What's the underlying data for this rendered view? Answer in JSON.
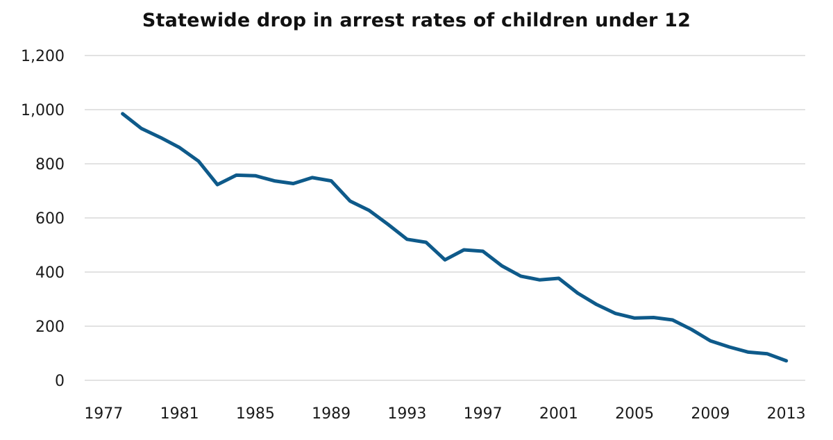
{
  "chart_data": {
    "type": "line",
    "title": "Statewide drop in arrest rates of children under 12",
    "xlabel": "",
    "ylabel": "",
    "x": [
      1978,
      1979,
      1980,
      1981,
      1982,
      1983,
      1984,
      1985,
      1986,
      1987,
      1988,
      1989,
      1990,
      1991,
      1992,
      1993,
      1994,
      1995,
      1996,
      1997,
      1998,
      1999,
      2000,
      2001,
      2002,
      2003,
      2004,
      2005,
      2006,
      2007,
      2008,
      2009,
      2010,
      2011,
      2012,
      2013
    ],
    "series": [
      {
        "values": [
          985,
          930,
          897,
          860,
          810,
          723,
          758,
          756,
          737,
          727,
          749,
          737,
          662,
          628,
          576,
          521,
          510,
          445,
          482,
          477,
          423,
          385,
          371,
          377,
          322,
          280,
          247,
          230,
          232,
          223,
          188,
          146,
          123,
          104,
          98,
          72
        ],
        "color": "#0e5a8a"
      }
    ],
    "xlim": [
      1976,
      2014
    ],
    "ylim": [
      0,
      1200
    ],
    "x_ticks": [
      1977,
      1981,
      1985,
      1989,
      1993,
      1997,
      2001,
      2005,
      2009,
      2013
    ],
    "x_tick_labels": [
      "1977",
      "1981",
      "1985",
      "1989",
      "1993",
      "1997",
      "2001",
      "2005",
      "2009",
      "2013"
    ],
    "y_ticks": [
      0,
      200,
      400,
      600,
      800,
      1000,
      1200
    ],
    "y_tick_labels": [
      "0",
      "200",
      "400",
      "600",
      "800",
      "1,000",
      "1,200"
    ],
    "grid": true,
    "grid_color": "#d9d9d9",
    "legend": "none"
  }
}
